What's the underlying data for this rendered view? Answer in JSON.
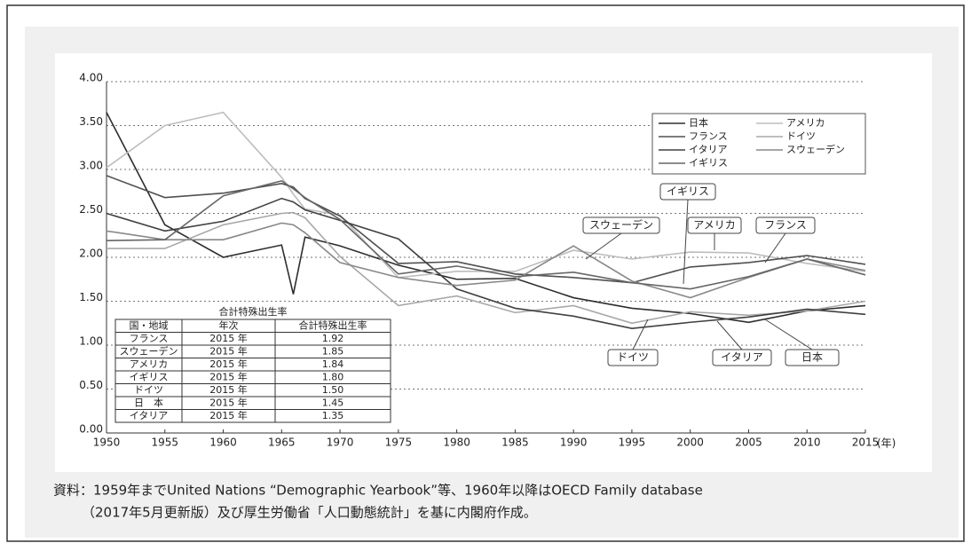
{
  "chart_data": {
    "type": "line",
    "x": [
      1950,
      1955,
      1960,
      1965,
      1966,
      1967,
      1970,
      1975,
      1980,
      1985,
      1990,
      1995,
      2000,
      2005,
      2010,
      2015
    ],
    "xlim": [
      1950,
      2015
    ],
    "xticks": [
      1950,
      1955,
      1960,
      1965,
      1970,
      1975,
      1980,
      1985,
      1990,
      1995,
      2000,
      2005,
      2010,
      2015
    ],
    "x_unit": "(年)",
    "ylim": [
      0,
      4
    ],
    "yticks": [
      {
        "value": 0,
        "label": "0.00"
      },
      {
        "value": 0.5,
        "label": "0.50"
      },
      {
        "value": 1,
        "label": "1.00"
      },
      {
        "value": 1.5,
        "label": "1.50"
      },
      {
        "value": 2,
        "label": "2.00"
      },
      {
        "value": 2.5,
        "label": "2.50"
      },
      {
        "value": 3,
        "label": "3.00"
      },
      {
        "value": 3.5,
        "label": "3.50"
      },
      {
        "value": 4,
        "label": "4.00"
      }
    ],
    "grid": true,
    "legend": "upper right",
    "series": [
      {
        "name": "日本",
        "color": "#2e2e2e",
        "values": [
          3.65,
          2.37,
          2.0,
          2.14,
          1.58,
          2.23,
          2.13,
          1.91,
          1.75,
          1.76,
          1.54,
          1.42,
          1.36,
          1.26,
          1.39,
          1.45
        ]
      },
      {
        "name": "アメリカ",
        "color": "#bdbdbd",
        "values": [
          3.02,
          3.5,
          3.65,
          2.91,
          2.72,
          2.55,
          2.48,
          1.77,
          1.84,
          1.84,
          2.08,
          1.98,
          2.06,
          2.05,
          1.93,
          1.84
        ]
      },
      {
        "name": "フランス",
        "color": "#505050",
        "values": [
          2.93,
          2.68,
          2.73,
          2.84,
          2.8,
          2.67,
          2.47,
          1.93,
          1.95,
          1.81,
          1.77,
          1.71,
          1.89,
          1.94,
          2.02,
          1.92
        ]
      },
      {
        "name": "ドイツ",
        "color": "#a8a8a8",
        "values": [
          2.1,
          2.1,
          2.37,
          2.5,
          2.51,
          2.45,
          2.01,
          1.45,
          1.56,
          1.37,
          1.45,
          1.25,
          1.38,
          1.34,
          1.39,
          1.5
        ]
      },
      {
        "name": "イタリア",
        "color": "#404040",
        "values": [
          2.5,
          2.3,
          2.41,
          2.67,
          2.63,
          2.54,
          2.42,
          2.21,
          1.64,
          1.42,
          1.33,
          1.19,
          1.26,
          1.32,
          1.41,
          1.35
        ]
      },
      {
        "name": "スウェーデン",
        "color": "#888888",
        "values": [
          2.3,
          2.2,
          2.2,
          2.39,
          2.37,
          2.28,
          1.94,
          1.77,
          1.68,
          1.74,
          2.13,
          1.73,
          1.54,
          1.77,
          1.98,
          1.85
        ]
      },
      {
        "name": "イギリス",
        "color": "#666666",
        "values": [
          2.19,
          2.2,
          2.7,
          2.87,
          2.78,
          2.68,
          2.43,
          1.81,
          1.9,
          1.78,
          1.83,
          1.71,
          1.64,
          1.78,
          1.98,
          1.8
        ]
      }
    ],
    "annotations": [
      "イギリス",
      "スウェーデン",
      "アメリカ",
      "フランス",
      "ドイツ",
      "イタリア",
      "日本"
    ],
    "table": {
      "title": "合計特殊出生率",
      "header": [
        "国・地域",
        "年次",
        "合計特殊出生率"
      ],
      "rows": [
        [
          "フランス",
          "2015 年",
          "1.92"
        ],
        [
          "スウェーデン",
          "2015 年",
          "1.85"
        ],
        [
          "アメリカ",
          "2015 年",
          "1.84"
        ],
        [
          "イギリス",
          "2015 年",
          "1.80"
        ],
        [
          "ドイツ",
          "2015 年",
          "1.50"
        ],
        [
          "日　本",
          "2015 年",
          "1.45"
        ],
        [
          "イタリア",
          "2015 年",
          "1.35"
        ]
      ]
    },
    "source": [
      "資料：1959年までUnited Nations “Demographic Yearbook”等、1960年以降はOECD Family database",
      "（2017年5月更新版）及び厚生労働省「人口動態統計」を基に内閣府作成。"
    ]
  }
}
